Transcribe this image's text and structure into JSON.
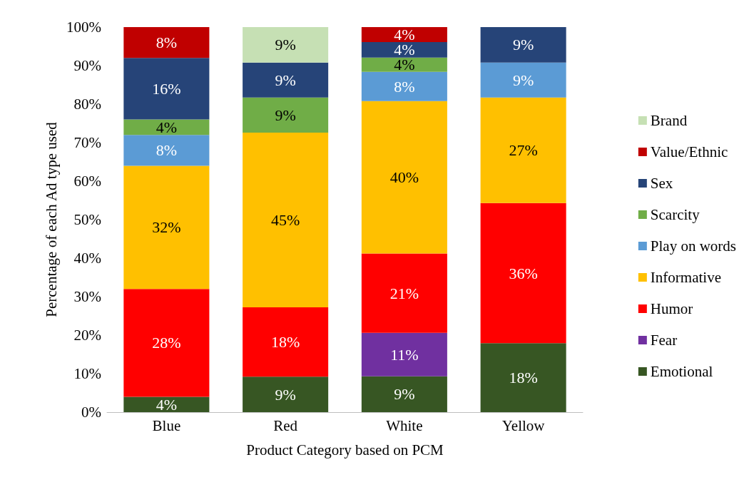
{
  "chart_data": {
    "type": "bar",
    "stacked": true,
    "xlabel": "Product Category based on PCM",
    "ylabel": "Percentage of each Ad type used",
    "categories": [
      "Blue",
      "Red",
      "White",
      "Yellow"
    ],
    "series": [
      {
        "name": "Emotional",
        "color": "#375623",
        "values": [
          4,
          9.2,
          9.3,
          17.9
        ],
        "value_labels": [
          "4%",
          "9%",
          "9%",
          "18%"
        ]
      },
      {
        "name": "Fear",
        "color": "#7030a0",
        "values": [
          null,
          null,
          11.3,
          null
        ],
        "value_labels": [
          null,
          null,
          "11%",
          null
        ]
      },
      {
        "name": "Humor",
        "color": "#ff0000",
        "values": [
          28,
          18,
          20.6,
          36.4
        ],
        "value_labels": [
          "28%",
          "18%",
          "21%",
          "36%"
        ]
      },
      {
        "name": "Informative",
        "color": "#ffc000",
        "values": [
          32,
          45.4,
          39.6,
          27.4
        ],
        "value_labels": [
          "32%",
          "45%",
          "40%",
          "27%"
        ]
      },
      {
        "name": "Play on words",
        "color": "#5b9bd5",
        "values": [
          8,
          null,
          7.6,
          9.1
        ],
        "value_labels": [
          "8%",
          null,
          "8%",
          "9%"
        ]
      },
      {
        "name": "Scarcity",
        "color": "#70ad47",
        "values": [
          4,
          9.1,
          3.7,
          null
        ],
        "value_labels": [
          "4%",
          "9%",
          "4%",
          null
        ]
      },
      {
        "name": "Sex",
        "color": "#264478",
        "values": [
          16,
          9.1,
          4,
          9.2
        ],
        "value_labels": [
          "16%",
          "9%",
          "4%",
          "9%"
        ]
      },
      {
        "name": "Value/Ethnic",
        "color": "#c00000",
        "values": [
          8,
          null,
          3.9,
          null
        ],
        "value_labels": [
          "8%",
          null,
          "4%",
          null
        ]
      },
      {
        "name": "Brand",
        "color": "#c6e0b4",
        "values": [
          null,
          9.2,
          null,
          null
        ],
        "value_labels": [
          null,
          "9%",
          null,
          null
        ]
      }
    ],
    "ylim": [
      0,
      100
    ],
    "yticks": [
      {
        "value": 0,
        "label": "0%"
      },
      {
        "value": 10,
        "label": "10%"
      },
      {
        "value": 20,
        "label": "20%"
      },
      {
        "value": 30,
        "label": "30%"
      },
      {
        "value": 40,
        "label": "40%"
      },
      {
        "value": 50,
        "label": "50%"
      },
      {
        "value": 60,
        "label": "60%"
      },
      {
        "value": 70,
        "label": "70%"
      },
      {
        "value": 80,
        "label": "80%"
      },
      {
        "value": 90,
        "label": "90%"
      },
      {
        "value": 100,
        "label": "100%"
      }
    ],
    "grid": false,
    "legend": "right"
  }
}
